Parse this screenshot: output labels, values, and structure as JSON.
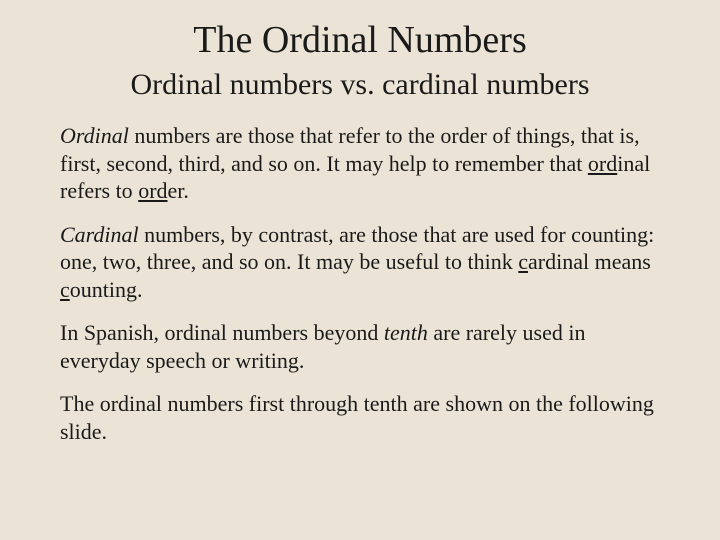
{
  "slide": {
    "background_color": "#ebe4d6",
    "text_color": "#1a1a1a",
    "title": "The Ordinal Numbers",
    "title_fontsize": 38,
    "subtitle": "Ordinal numbers vs. cardinal numbers",
    "subtitle_fontsize": 30,
    "body_fontsize": 22,
    "para1": {
      "lead_italic": "Ordinal",
      "part1": " numbers are those that refer to the order of things, that is, first, second, third, and so on.  It may help to remember that ",
      "ul1": "ord",
      "part2": "inal refers to ",
      "ul2": "ord",
      "part3": "er."
    },
    "para2": {
      "lead_italic": "Cardinal",
      "part1": " numbers, by contrast, are those that are used for counting:  one, two, three, and so on.  It may be useful to think ",
      "ul1": "c",
      "part2": "ardinal means ",
      "ul2": "c",
      "part3": "ounting."
    },
    "para3": {
      "part1": "In Spanish, ordinal numbers beyond ",
      "italic1": "tenth",
      "part2": " are rarely used in everyday speech or writing."
    },
    "para4": {
      "text": "The ordinal numbers first through tenth are shown on the following slide."
    }
  }
}
